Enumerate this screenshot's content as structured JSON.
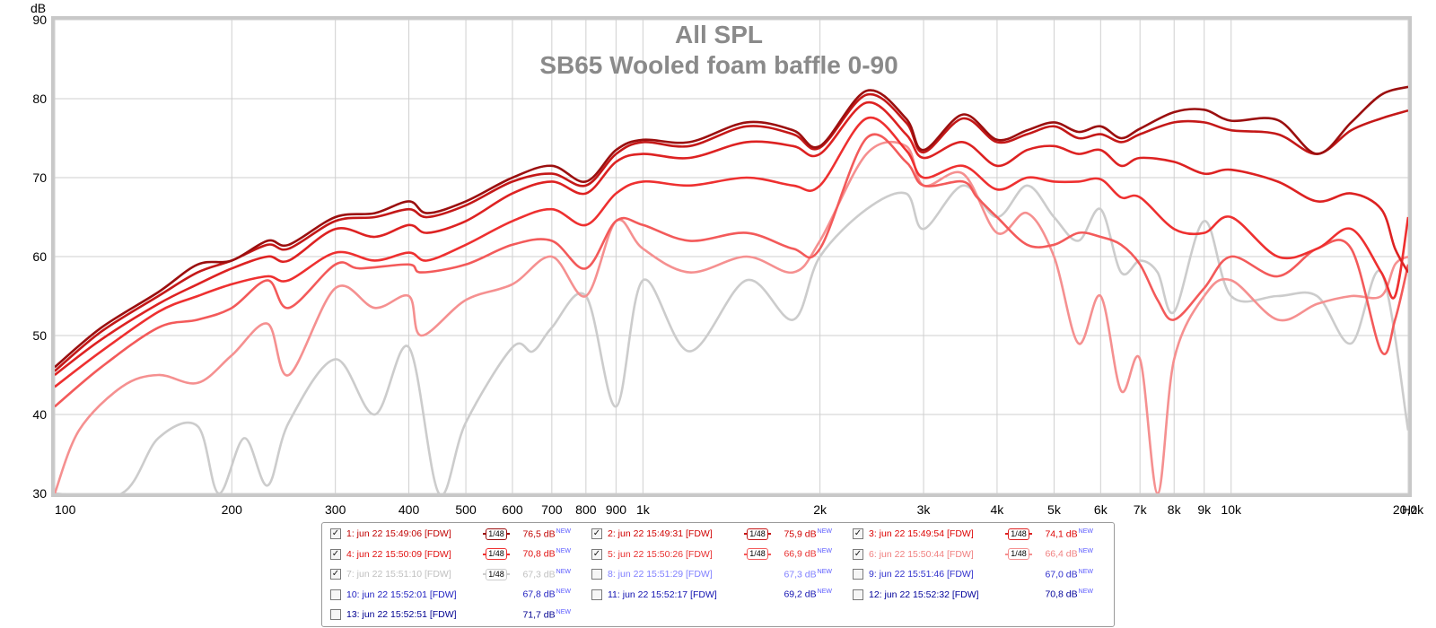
{
  "chart_data": {
    "type": "line",
    "title": "All SPL",
    "subtitle": "SB65 Wooled foam baffle 0-90",
    "xlabel": "Hz",
    "ylabel": "dB",
    "xscale": "log",
    "xlim": [
      100,
      20000
    ],
    "ylim": [
      30,
      90
    ],
    "grid": true,
    "x_ticks": [
      {
        "v": 100,
        "label": "100"
      },
      {
        "v": 200,
        "label": "200"
      },
      {
        "v": 300,
        "label": "300"
      },
      {
        "v": 400,
        "label": "400"
      },
      {
        "v": 500,
        "label": "500"
      },
      {
        "v": 600,
        "label": "600"
      },
      {
        "v": 700,
        "label": "700"
      },
      {
        "v": 800,
        "label": "800"
      },
      {
        "v": 900,
        "label": "900"
      },
      {
        "v": 1000,
        "label": "1k"
      },
      {
        "v": 2000,
        "label": "2k"
      },
      {
        "v": 3000,
        "label": "3k"
      },
      {
        "v": 4000,
        "label": "4k"
      },
      {
        "v": 5000,
        "label": "5k"
      },
      {
        "v": 6000,
        "label": "6k"
      },
      {
        "v": 7000,
        "label": "7k"
      },
      {
        "v": 8000,
        "label": "8k"
      },
      {
        "v": 9000,
        "label": "9k"
      },
      {
        "v": 10000,
        "label": "10k"
      },
      {
        "v": 20000,
        "label": "20,0k"
      }
    ],
    "y_ticks": [
      30,
      40,
      50,
      60,
      70,
      80,
      90
    ],
    "series": [
      {
        "name": "1: jun 22 15:49:06 [FDW]",
        "color": "#9b0f0f",
        "x": [
          100,
          120,
          150,
          175,
          200,
          230,
          250,
          300,
          350,
          400,
          430,
          500,
          600,
          700,
          800,
          900,
          1000,
          1200,
          1500,
          1800,
          2000,
          2400,
          2800,
          3000,
          3500,
          4000,
          4500,
          5000,
          5500,
          6000,
          6500,
          7000,
          8000,
          9000,
          10000,
          12000,
          14000,
          16000,
          18000,
          20000
        ],
        "y": [
          46,
          51,
          55.5,
          59,
          59.5,
          62,
          61.5,
          65,
          65.5,
          67,
          65.5,
          67,
          70,
          71.5,
          69.5,
          73.5,
          74.8,
          74.5,
          77,
          76,
          74,
          81,
          77.5,
          73.5,
          78,
          74.8,
          76,
          77,
          75.8,
          76.5,
          75,
          76.2,
          78.3,
          78.6,
          77.2,
          77.3,
          73,
          77,
          80.5,
          81.5
        ]
      },
      {
        "name": "2: jun 22 15:49:31 [FDW]",
        "color": "#c41818",
        "x": [
          100,
          120,
          150,
          175,
          200,
          230,
          250,
          300,
          350,
          400,
          430,
          500,
          600,
          700,
          800,
          900,
          1000,
          1200,
          1500,
          1800,
          2000,
          2400,
          2800,
          3000,
          3500,
          4000,
          4500,
          5000,
          5500,
          6000,
          6500,
          7000,
          8000,
          9000,
          10000,
          12000,
          14000,
          16000,
          18000,
          20000
        ],
        "y": [
          45.5,
          50.5,
          55,
          58,
          59.5,
          61.5,
          61,
          64.5,
          65,
          66,
          65,
          66.5,
          69.5,
          70.5,
          69,
          73,
          74.5,
          74,
          76.5,
          75.5,
          73.8,
          80.5,
          77,
          73.2,
          77.5,
          74.5,
          75.5,
          76.5,
          75,
          75.5,
          74.5,
          75.5,
          77,
          77,
          76,
          75.5,
          73,
          76,
          77.5,
          78.5
        ]
      },
      {
        "name": "3: jun 22 15:49:54 [FDW]",
        "color": "#dd2222",
        "x": [
          100,
          120,
          150,
          175,
          200,
          230,
          250,
          300,
          350,
          400,
          430,
          500,
          600,
          700,
          800,
          900,
          1000,
          1200,
          1500,
          1800,
          2000,
          2400,
          2800,
          3000,
          3500,
          4000,
          4500,
          5000,
          5500,
          6000,
          6500,
          7000,
          8000,
          9000,
          10000,
          12000,
          14000,
          16000,
          18000,
          19000,
          20000
        ],
        "y": [
          45,
          49.5,
          54,
          56.5,
          58.5,
          60,
          59.5,
          63.5,
          62.5,
          64,
          63,
          64.5,
          68,
          69.5,
          68,
          72,
          73,
          72.5,
          74.5,
          74,
          73,
          79.5,
          75.5,
          72.5,
          74.5,
          71.5,
          73.5,
          74,
          73,
          73.5,
          71.5,
          72.5,
          72,
          70.5,
          71,
          69.5,
          67,
          68,
          66,
          61,
          58
        ]
      },
      {
        "name": "4: jun 22 15:50:09 [FDW]",
        "color": "#ee3030",
        "x": [
          100,
          120,
          150,
          175,
          200,
          230,
          250,
          300,
          350,
          400,
          430,
          500,
          600,
          700,
          800,
          900,
          1000,
          1200,
          1500,
          1800,
          2000,
          2400,
          2800,
          3000,
          3500,
          4000,
          4500,
          5000,
          5500,
          6000,
          6500,
          7000,
          8000,
          9000,
          10000,
          12000,
          14000,
          16000,
          18000,
          19000,
          20000
        ],
        "y": [
          43.5,
          48,
          53,
          55,
          56.5,
          57.5,
          57,
          60.5,
          59.5,
          60.5,
          59.5,
          61.5,
          64.5,
          66,
          64,
          68,
          69.5,
          69,
          70,
          69,
          69,
          77.5,
          73.5,
          70,
          71.5,
          68.5,
          70,
          69.5,
          69.5,
          69.8,
          67.5,
          67.5,
          63.5,
          63,
          65,
          60,
          61,
          63.5,
          58,
          55,
          65
        ]
      },
      {
        "name": "5: jun 22 15:50:26 [FDW]",
        "color": "#f35a5a",
        "x": [
          100,
          120,
          150,
          175,
          200,
          230,
          250,
          300,
          330,
          400,
          420,
          500,
          600,
          700,
          800,
          900,
          1000,
          1200,
          1500,
          1800,
          2000,
          2400,
          2800,
          3000,
          3500,
          3700,
          4000,
          4500,
          5000,
          5500,
          6000,
          6500,
          7000,
          7500,
          8000,
          9000,
          10000,
          12000,
          14000,
          16000,
          18000,
          19000,
          20000
        ],
        "y": [
          41,
          46,
          51,
          52,
          53.5,
          57,
          53.5,
          59,
          58.5,
          59,
          58,
          59,
          61.5,
          62,
          58.5,
          64.5,
          64,
          62,
          63,
          61,
          61,
          75,
          72,
          69,
          69.5,
          67.5,
          65,
          61.5,
          61.5,
          63,
          62.5,
          61.5,
          59,
          54.5,
          52,
          56,
          60,
          57.5,
          61,
          61,
          48,
          52,
          59
        ]
      },
      {
        "name": "6: jun 22 15:50:44 [FDW]",
        "color": "#f59090",
        "x": [
          100,
          110,
          130,
          150,
          175,
          200,
          230,
          250,
          300,
          350,
          400,
          420,
          500,
          600,
          700,
          800,
          900,
          1000,
          1200,
          1500,
          1800,
          2000,
          2400,
          2800,
          3000,
          3500,
          4000,
          4500,
          5000,
          5500,
          6000,
          6500,
          7000,
          7500,
          8000,
          9000,
          10000,
          12000,
          14000,
          16000,
          18000,
          19000,
          20000
        ],
        "y": [
          30,
          38,
          43.5,
          45,
          44,
          47.5,
          51.5,
          45,
          56,
          53.5,
          55,
          50,
          54.5,
          56.5,
          60,
          55,
          64.5,
          61,
          58,
          60,
          58,
          62,
          73,
          74,
          69,
          70.5,
          63,
          65.5,
          60,
          49,
          55,
          43,
          47,
          30,
          47,
          55,
          57,
          52,
          54,
          55,
          55,
          59,
          60
        ]
      },
      {
        "name": "7: jun 22 15:51:10 [FDW]",
        "color": "#cccccc",
        "x": [
          100,
          130,
          150,
          175,
          190,
          210,
          230,
          250,
          300,
          350,
          400,
          450,
          500,
          600,
          650,
          700,
          800,
          900,
          1000,
          1200,
          1500,
          1800,
          2000,
          2400,
          2800,
          3000,
          3500,
          4000,
          4500,
          5000,
          5500,
          6000,
          6500,
          7000,
          7500,
          8000,
          9000,
          10000,
          12000,
          14000,
          16000,
          18000,
          20000
        ],
        "y": [
          30,
          30,
          37,
          38.5,
          30,
          37,
          31,
          39,
          47,
          40,
          48.5,
          30,
          39,
          48.5,
          48,
          51,
          55,
          41,
          57,
          48,
          57,
          52,
          60,
          66,
          68,
          63.5,
          69,
          65,
          69,
          65,
          62,
          66,
          58,
          59.5,
          58,
          53,
          64.5,
          55,
          55,
          55,
          49,
          58,
          38
        ]
      }
    ]
  },
  "legend": {
    "rows": [
      {
        "idx": 1,
        "label": "1: jun 22 15:49:06 [FDW]",
        "checked": true,
        "smoothing": "1/48",
        "value": "76,5 dB",
        "badge": "NEW",
        "color": "#9b0f0f",
        "textColor": "#c00000",
        "valueColor": "#c00000"
      },
      {
        "idx": 2,
        "label": "2: jun 22 15:49:31 [FDW]",
        "checked": true,
        "smoothing": "1/48",
        "value": "75,9 dB",
        "badge": "NEW",
        "color": "#c41818",
        "textColor": "#d00000",
        "valueColor": "#d00000"
      },
      {
        "idx": 3,
        "label": "3: jun 22 15:49:54 [FDW]",
        "checked": true,
        "smoothing": "1/48",
        "value": "74,1 dB",
        "badge": "NEW",
        "color": "#dd2222",
        "textColor": "#dd0000",
        "valueColor": "#dd0000"
      },
      {
        "idx": 4,
        "label": "4: jun 22 15:50:09 [FDW]",
        "checked": true,
        "smoothing": "1/48",
        "value": "70,8 dB",
        "badge": "NEW",
        "color": "#ee3030",
        "textColor": "#e01010",
        "valueColor": "#e01010"
      },
      {
        "idx": 5,
        "label": "5: jun 22 15:50:26 [FDW]",
        "checked": true,
        "smoothing": "1/48",
        "value": "66,9 dB",
        "badge": "NEW",
        "color": "#f35a5a",
        "textColor": "#e83030",
        "valueColor": "#e83030"
      },
      {
        "idx": 6,
        "label": "6: jun 22 15:50:44 [FDW]",
        "checked": true,
        "smoothing": "1/48",
        "value": "66,4 dB",
        "badge": "NEW",
        "color": "#f59090",
        "textColor": "#f08080",
        "valueColor": "#f08080"
      },
      {
        "idx": 7,
        "label": "7: jun 22 15:51:10 [FDW]",
        "checked": true,
        "smoothing": "1/48",
        "value": "67,3 dB",
        "badge": "NEW",
        "color": "#cccccc",
        "textColor": "#c0c0c0",
        "valueColor": "#c0c0c0"
      },
      {
        "idx": 8,
        "label": "8: jun 22 15:51:29 [FDW]",
        "checked": false,
        "smoothing": "",
        "value": "67,3 dB",
        "badge": "NEW",
        "color": "#7a7aff",
        "textColor": "#8080ff",
        "valueColor": "#8080ff"
      },
      {
        "idx": 9,
        "label": "9: jun 22 15:51:46 [FDW]",
        "checked": false,
        "smoothing": "",
        "value": "67,0 dB",
        "badge": "NEW",
        "color": "#3030dd",
        "textColor": "#3030cc",
        "valueColor": "#3030cc"
      },
      {
        "idx": 10,
        "label": "10: jun 22 15:52:01 [FDW]",
        "checked": false,
        "smoothing": "",
        "value": "67,8 dB",
        "badge": "NEW",
        "color": "#2020cc",
        "textColor": "#2020c0",
        "valueColor": "#2020c0"
      },
      {
        "idx": 11,
        "label": "11: jun 22 15:52:17 [FDW]",
        "checked": false,
        "smoothing": "",
        "value": "69,2 dB",
        "badge": "NEW",
        "color": "#1010aa",
        "textColor": "#1010b0",
        "valueColor": "#1010b0"
      },
      {
        "idx": 12,
        "label": "12: jun 22 15:52:32 [FDW]",
        "checked": false,
        "smoothing": "",
        "value": "70,8 dB",
        "badge": "NEW",
        "color": "#000099",
        "textColor": "#00009a",
        "valueColor": "#00009a"
      },
      {
        "idx": 13,
        "label": "13: jun 22 15:52:51 [FDW]",
        "checked": false,
        "smoothing": "",
        "value": "71,7 dB",
        "badge": "NEW",
        "color": "#000088",
        "textColor": "#000090",
        "valueColor": "#000090"
      }
    ]
  }
}
